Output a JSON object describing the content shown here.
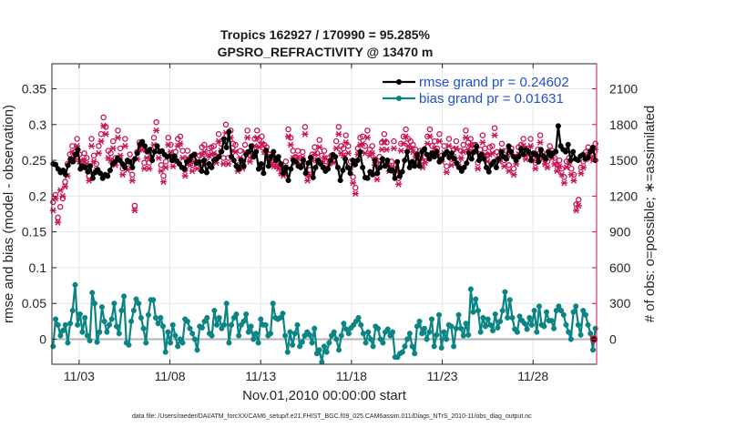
{
  "colors": {
    "rmse": "#000000",
    "bias": "#0b8484",
    "obs": "#cc1155",
    "grid": "#e6e6e6",
    "legend_text": "#1f4fd8",
    "zero_line": "#b3b3b3",
    "right_axis": "#cc1155"
  },
  "chart_data": {
    "type": "line",
    "title": "Tropics 162927 / 170990 = 95.285%",
    "subtitle": "GPSRO_REFRACTIVITY @ 13470 m",
    "xlabel": "Nov.01,2010 00:00:00 start",
    "ylabel": "rmse and bias (model - observation)",
    "y2label": "# of obs: o=possible; ∗=assimilated",
    "footer": "data file: /Users/raeder/DAI/ATM_forcXX/CAM6_setup/f.e21.FHIST_BGC.f09_025.CAM6assim.011/Diags_NTrS_2010-11/obs_diag_output.nc",
    "xlim": [
      1.5,
      31.5
    ],
    "ylim": [
      -0.035,
      0.385
    ],
    "y2lim": [
      -210,
      2310
    ],
    "xticks": [
      3,
      8,
      13,
      18,
      23,
      28
    ],
    "xtick_labels": [
      "11/03",
      "11/08",
      "11/13",
      "11/18",
      "11/23",
      "11/28"
    ],
    "yticks": [
      0,
      0.05,
      0.1,
      0.15,
      0.2,
      0.25,
      0.3,
      0.35
    ],
    "ytick_labels": [
      "0",
      "0.05",
      "0.1",
      "0.15",
      "0.2",
      "0.25",
      "0.3",
      "0.35"
    ],
    "y2ticks": [
      0,
      300,
      600,
      900,
      1200,
      1500,
      1800,
      2100
    ],
    "y2tick_labels": [
      "0",
      "300",
      "600",
      "900",
      "1200",
      "1500",
      "1800",
      "2100"
    ],
    "grid": true,
    "legend_position": "top-right",
    "series": [
      {
        "name": "rmse grand pr = 0.24602",
        "axis": "left",
        "marker": "filled-circle",
        "values": [
          0.245,
          0.244,
          0.238,
          0.233,
          0.236,
          0.23,
          0.243,
          0.252,
          0.248,
          0.258,
          0.265,
          0.238,
          0.242,
          0.24,
          0.234,
          0.242,
          0.225,
          0.233,
          0.237,
          0.232,
          0.225,
          0.23,
          0.228,
          0.236,
          0.245,
          0.248,
          0.253,
          0.25,
          0.245,
          0.24,
          0.25,
          0.248,
          0.24,
          0.252,
          0.26,
          0.272,
          0.276,
          0.27,
          0.262,
          0.265,
          0.25,
          0.262,
          0.27,
          0.262,
          0.263,
          0.258,
          0.255,
          0.256,
          0.25,
          0.256,
          0.249,
          0.245,
          0.24,
          0.238,
          0.248,
          0.25,
          0.256,
          0.258,
          0.246,
          0.248,
          0.235,
          0.25,
          0.233,
          0.245,
          0.24,
          0.25,
          0.252,
          0.255,
          0.262,
          0.28,
          0.268,
          0.29,
          0.255,
          0.25,
          0.242,
          0.238,
          0.25,
          0.242,
          0.258,
          0.262,
          0.27,
          0.255,
          0.262,
          0.238,
          0.245,
          0.232,
          0.264,
          0.242,
          0.255,
          0.262,
          0.25,
          0.255,
          0.245,
          0.232,
          0.24,
          0.222,
          0.238,
          0.25,
          0.248,
          0.242,
          0.24,
          0.25,
          0.232,
          0.246,
          0.254,
          0.226,
          0.24,
          0.25,
          0.245,
          0.24,
          0.235,
          0.238,
          0.25,
          0.258,
          0.255,
          0.24,
          0.222,
          0.236,
          0.252,
          0.24,
          0.232,
          0.25,
          0.244,
          0.25,
          0.262,
          0.24,
          0.226,
          0.225,
          0.234,
          0.23,
          0.25,
          0.232,
          0.24,
          0.252,
          0.242,
          0.25,
          0.236,
          0.236,
          0.225,
          0.248,
          0.228,
          0.234,
          0.25,
          0.262,
          0.24,
          0.248,
          0.242,
          0.258,
          0.242,
          0.262,
          0.266,
          0.258,
          0.252,
          0.26,
          0.255,
          0.262,
          0.248,
          0.252,
          0.258,
          0.262,
          0.254,
          0.26,
          0.252,
          0.246,
          0.24,
          0.235,
          0.24,
          0.246,
          0.26,
          0.252,
          0.262,
          0.27,
          0.25,
          0.258,
          0.252,
          0.24,
          0.234,
          0.244,
          0.248,
          0.24,
          0.252,
          0.262,
          0.255,
          0.252,
          0.27,
          0.262,
          0.255,
          0.25,
          0.255,
          0.266,
          0.258,
          0.265,
          0.262,
          0.25,
          0.26,
          0.258,
          0.248,
          0.265,
          0.256,
          0.252,
          0.262,
          0.256,
          0.26,
          0.262,
          0.298,
          0.27,
          0.265,
          0.262,
          0.272,
          0.25,
          0.262,
          0.252,
          0.25,
          0.256,
          0.258,
          0.252,
          0.254,
          0.262,
          0.268,
          0.25
        ]
      },
      {
        "name": "bias grand pr = 0.01631",
        "axis": "left",
        "marker": "filled-circle",
        "values": [
          -0.01,
          0.028,
          0.02,
          0.005,
          0.012,
          0.02,
          -0.005,
          0.022,
          0.04,
          0.076,
          0.02,
          0.035,
          0.01,
          0.03,
          0.005,
          -0.002,
          0.065,
          0.05,
          -0.004,
          0.01,
          0.045,
          0.025,
          0.01,
          0.02,
          0.028,
          0.05,
          0.018,
          0.008,
          0.04,
          0.06,
          -0.005,
          -0.008,
          0.025,
          0.04,
          0.056,
          0.05,
          0.03,
          0.015,
          -0.005,
          0.034,
          0.055,
          0.055,
          0.03,
          0.022,
          0.03,
          0.018,
          -0.018,
          0.01,
          -0.005,
          0.02,
          0.005,
          -0.01,
          0.0,
          -0.005,
          0.028,
          0.025,
          0.015,
          0.008,
          0.0,
          -0.015,
          0.018,
          0.016,
          0.025,
          0.03,
          0.008,
          0.005,
          0.04,
          0.02,
          0.03,
          0.015,
          0.02,
          0.05,
          -0.005,
          0.02,
          0.03,
          0.035,
          0.005,
          0.02,
          0.025,
          0.035,
          0.01,
          0.018,
          0.0,
          0.008,
          -0.005,
          0.028,
          0.02,
          0.02,
          0.005,
          0.008,
          0.05,
          0.03,
          0.028,
          0.03,
          0.036,
          0.005,
          -0.018,
          0.01,
          -0.008,
          0.008,
          0.02,
          -0.01,
          -0.004,
          0.005,
          0.01,
          0.006,
          -0.005,
          0.015,
          -0.02,
          -0.015,
          -0.032,
          -0.01,
          -0.018,
          -0.005,
          0.005,
          0.01,
          0.0,
          -0.015,
          0.005,
          0.022,
          0.014,
          0.008,
          0.016,
          0.02,
          0.025,
          0.03,
          0.02,
          0.008,
          -0.005,
          0.01,
          0.0,
          -0.01,
          0.018,
          0.015,
          0.0,
          -0.005,
          0.01,
          0.014,
          0.005,
          0.01,
          -0.025,
          -0.025,
          -0.02,
          -0.018,
          -0.01,
          0.0,
          0.008,
          -0.01,
          -0.02,
          0.018,
          0.025,
          0.008,
          0.015,
          0.0,
          0.01,
          0.028,
          -0.01,
          0.006,
          0.034,
          -0.012,
          0.01,
          0.0,
          0.02,
          0.018,
          -0.01,
          0.015,
          0.034,
          0.015,
          0.005,
          0.022,
          0.006,
          0.07,
          0.038,
          0.056,
          0.04,
          0.01,
          0.03,
          0.018,
          0.028,
          0.02,
          0.012,
          0.035,
          0.016,
          0.025,
          0.04,
          0.066,
          0.03,
          0.055,
          0.03,
          0.014,
          0.01,
          0.032,
          0.026,
          0.022,
          0.014,
          0.03,
          0.02,
          0.04,
          0.01,
          0.046,
          0.02,
          0.018,
          0.038,
          0.026,
          0.026,
          0.015,
          0.04,
          0.046,
          0.04,
          0.034,
          0.02,
          0.01,
          0.0,
          0.038,
          0.046,
          0.02,
          0.006,
          0.04,
          0.034,
          0.02,
          0.008,
          -0.015,
          0.015
        ]
      },
      {
        "name": "possible obs",
        "axis": "right",
        "marker": "circle",
        "values": [
          1150,
          1210,
          1020,
          1110,
          1180,
          1320,
          1470,
          1550,
          1620,
          1570,
          1680,
          1550,
          1490,
          1560,
          1520,
          1370,
          1680,
          1540,
          1470,
          1620,
          1720,
          1860,
          1780,
          1580,
          1560,
          1660,
          1520,
          1750,
          1600,
          1430,
          1680,
          1470,
          1550,
          1380,
          1120,
          1570,
          1650,
          1650,
          1480,
          1580,
          1480,
          1590,
          1690,
          1820,
          1580,
          1460,
          1370,
          1490,
          1690,
          1630,
          1500,
          1570,
          1680,
          1700,
          1580,
          1420,
          1580,
          1510,
          1460,
          1550,
          1480,
          1540,
          1610,
          1630,
          1520,
          1600,
          1610,
          1620,
          1530,
          1720,
          1640,
          1520,
          1800,
          1520,
          1750,
          1640,
          1630,
          1460,
          1580,
          1480,
          1630,
          1750,
          1540,
          1590,
          1680,
          1750,
          1670,
          1700,
          1630,
          1610,
          1550,
          1520,
          1500,
          1500,
          1480,
          1440,
          1420,
          1490,
          1760,
          1690,
          1580,
          1530,
          1580,
          1520,
          1570,
          1780,
          1380,
          1420,
          1550,
          1610,
          1560,
          1670,
          1540,
          1580,
          1490,
          1520,
          1540,
          1530,
          1660,
          1780,
          1620,
          1600,
          1710,
          1620,
          1490,
          1360,
          1270,
          1600,
          1690,
          1700,
          1620,
          1750,
          1590,
          1620,
          1510,
          1390,
          1530,
          1650,
          1720,
          1650,
          1460,
          1490,
          1660,
          1460,
          1350,
          1640,
          1700,
          1760,
          1680,
          1660,
          1630,
          1590,
          1520,
          1580,
          1490,
          1530,
          1700,
          1760,
          1620,
          1660,
          1600,
          1720,
          1540,
          1620,
          1450,
          1680,
          1510,
          1590,
          1660,
          1500,
          1580,
          1630,
          1750,
          1650,
          1680,
          1630,
          1630,
          1480,
          1590,
          1710,
          1600,
          1540,
          1610,
          1620,
          1770,
          1570,
          1540,
          1640,
          1500,
          1580,
          1460,
          1600,
          1430,
          1520,
          1610,
          1630,
          1680,
          1560,
          1600,
          1680,
          1550,
          1480,
          1590,
          1710,
          1560,
          1520,
          1490,
          1620,
          1580,
          1520,
          1460,
          1500,
          1430,
          1360,
          1490,
          1520,
          1430,
          1380,
          1130,
          1170,
          1440,
          1490,
          1570,
          1610,
          1580,
          1550,
          1640
        ]
      },
      {
        "name": "assimilated obs",
        "axis": "right",
        "marker": "asterisk",
        "values": [
          1080,
          1180,
          980,
          1250,
          1200,
          1280,
          1370,
          1490,
          1570,
          1510,
          1620,
          1490,
          1440,
          1500,
          1470,
          1330,
          1620,
          1490,
          1420,
          1560,
          1660,
          1790,
          1720,
          1520,
          1500,
          1600,
          1460,
          1690,
          1540,
          1380,
          1620,
          1420,
          1490,
          1330,
          1080,
          1510,
          1590,
          1590,
          1430,
          1520,
          1430,
          1530,
          1630,
          1750,
          1520,
          1410,
          1320,
          1440,
          1630,
          1570,
          1450,
          1510,
          1620,
          1640,
          1520,
          1370,
          1520,
          1460,
          1410,
          1490,
          1430,
          1480,
          1550,
          1570,
          1470,
          1540,
          1550,
          1560,
          1480,
          1660,
          1580,
          1470,
          1730,
          1470,
          1690,
          1580,
          1570,
          1410,
          1520,
          1430,
          1570,
          1690,
          1490,
          1530,
          1620,
          1690,
          1610,
          1640,
          1570,
          1550,
          1500,
          1470,
          1450,
          1450,
          1430,
          1390,
          1370,
          1440,
          1700,
          1630,
          1520,
          1480,
          1520,
          1470,
          1520,
          1720,
          1330,
          1370,
          1500,
          1550,
          1500,
          1610,
          1490,
          1520,
          1440,
          1470,
          1490,
          1480,
          1600,
          1720,
          1560,
          1540,
          1650,
          1560,
          1440,
          1310,
          1220,
          1550,
          1630,
          1640,
          1560,
          1690,
          1540,
          1560,
          1460,
          1340,
          1480,
          1590,
          1660,
          1590,
          1410,
          1440,
          1600,
          1410,
          1300,
          1580,
          1640,
          1700,
          1620,
          1600,
          1570,
          1530,
          1470,
          1520,
          1440,
          1480,
          1640,
          1700,
          1560,
          1600,
          1550,
          1660,
          1490,
          1560,
          1400,
          1620,
          1460,
          1530,
          1600,
          1450,
          1520,
          1570,
          1690,
          1590,
          1620,
          1570,
          1570,
          1430,
          1530,
          1650,
          1550,
          1490,
          1550,
          1560,
          1710,
          1510,
          1490,
          1580,
          1450,
          1520,
          1410,
          1550,
          1380,
          1470,
          1550,
          1570,
          1620,
          1510,
          1550,
          1620,
          1500,
          1430,
          1530,
          1650,
          1510,
          1470,
          1440,
          1560,
          1520,
          1470,
          1410,
          1450,
          1380,
          1310,
          1440,
          1470,
          1380,
          1330,
          1080,
          1120,
          1390,
          1440,
          1510,
          1550,
          1520,
          1500,
          1590
        ]
      }
    ],
    "end_markers": [
      {
        "name": "rmse end marker",
        "axis": "left",
        "value": 0
      },
      {
        "name": "obs end marker",
        "axis": "right",
        "value": 0
      }
    ]
  }
}
